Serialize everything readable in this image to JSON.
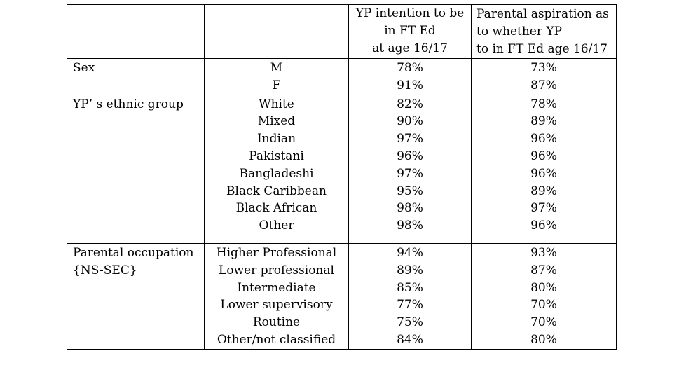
{
  "header": {
    "col1": "",
    "col2": "",
    "col3_lines": [
      "YP intention to be",
      "in FT Ed",
      "at age 16/17"
    ],
    "col4_lines": [
      "Parental aspiration as",
      "to whether YP",
      "to in FT Ed age 16/17"
    ]
  },
  "groups": [
    {
      "label_lines": [
        "Sex"
      ],
      "rows": [
        {
          "category": "M",
          "yp": "78%",
          "parent": "73%"
        },
        {
          "category": "F",
          "yp": "91%",
          "parent": "87%"
        }
      ]
    },
    {
      "label_lines": [
        "YP’ s ethnic group"
      ],
      "rows": [
        {
          "category": "White",
          "yp": "82%",
          "parent": "78%"
        },
        {
          "category": "Mixed",
          "yp": "90%",
          "parent": "89%"
        },
        {
          "category": "Indian",
          "yp": "97%",
          "parent": "96%"
        },
        {
          "category": "Pakistani",
          "yp": "96%",
          "parent": "96%"
        },
        {
          "category": "Bangladeshi",
          "yp": "97%",
          "parent": "96%"
        },
        {
          "category": "Black Caribbean",
          "yp": "95%",
          "parent": "89%"
        },
        {
          "category": "Black African",
          "yp": "98%",
          "parent": "97%"
        },
        {
          "category": "Other",
          "yp": "98%",
          "parent": "96%"
        }
      ]
    },
    {
      "label_lines": [
        "Parental occupation",
        "{NS-SEC}"
      ],
      "rows": [
        {
          "category": "Higher Professional",
          "yp": "94%",
          "parent": "93%"
        },
        {
          "category": "Lower professional",
          "yp": "89%",
          "parent": "87%"
        },
        {
          "category": "Intermediate",
          "yp": "85%",
          "parent": "80%"
        },
        {
          "category": "Lower supervisory",
          "yp": "77%",
          "parent": "70%"
        },
        {
          "category": "Routine",
          "yp": "75%",
          "parent": "70%"
        },
        {
          "category": "Other/not classified",
          "yp": "84%",
          "parent": "80%"
        }
      ]
    }
  ]
}
